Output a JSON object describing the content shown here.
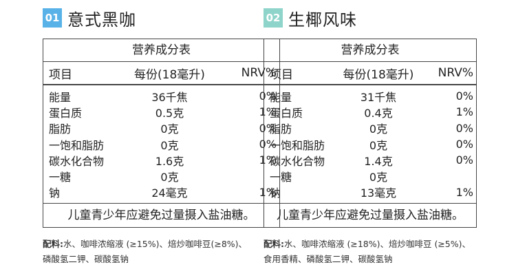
{
  "products": [
    {
      "number": "01",
      "name": "意式黑咖",
      "table_title": "营养成分表",
      "headers": [
        "项目",
        "每份(18毫升)",
        "NRV%"
      ],
      "rows": [
        [
          "能量",
          "36千焦",
          "0%"
        ],
        [
          "蛋白质",
          "0.5克",
          "1%"
        ],
        [
          "脂肪",
          "0克",
          "0%"
        ],
        [
          "一饱和脂肪",
          "0克",
          "0%"
        ],
        [
          "碳水化合物",
          "1.6克",
          "1%"
        ],
        [
          "一糖",
          "0克",
          ""
        ],
        [
          "钠",
          "24毫克",
          "1%"
        ]
      ],
      "footer": "儿童青少年应避免过量摄入盐油糖。",
      "ingredients_label": "配料:",
      "ingredients_line1": "水、咖啡浓缩液 (≥15%)、焙炒咖啡豆(≥8%)、",
      "ingredients_line2": "磷酸氢二钾、碳酸氢钠"
    },
    {
      "number": "02",
      "name": "生椰风味",
      "table_title": "营养成分表",
      "headers": [
        "项目",
        "每份(18毫升)",
        "NRV%"
      ],
      "rows": [
        [
          "能量",
          "31千焦",
          "0%"
        ],
        [
          "蛋白质",
          "0.4克",
          "1%"
        ],
        [
          "脂肪",
          "0克",
          "0%"
        ],
        [
          "一饱和脂肪",
          "0克",
          "0%"
        ],
        [
          "碳水化合物",
          "1.4克",
          "0%"
        ],
        [
          "一糖",
          "0克",
          ""
        ],
        [
          "钠",
          "13毫克",
          "1%"
        ]
      ],
      "footer": "儿童青少年应避免过量摄入盐油糖。",
      "ingredients_label": "配料:",
      "ingredients_line1": "水、咖啡浓缩液 (≥18%)、焙炒咖啡豆 (≥5%)、",
      "ingredients_line2": "食用香精、磷酸氢二钾、碳酸氢钠"
    }
  ]
}
